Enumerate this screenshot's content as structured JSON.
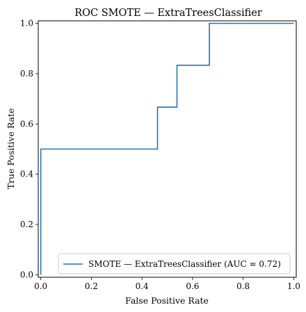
{
  "chart_data": {
    "type": "line",
    "title": "ROC SMOTE — ExtraTreesClassifier",
    "xlabel": "False Positive Rate",
    "ylabel": "True Positive Rate",
    "xlim": [
      -0.01,
      1.01
    ],
    "ylim": [
      -0.01,
      1.01
    ],
    "x_ticks": [
      0.0,
      0.2,
      0.4,
      0.6,
      0.8,
      1.0
    ],
    "x_tick_labels": [
      "0.0",
      "0.2",
      "0.4",
      "0.6",
      "0.8",
      "1.0"
    ],
    "y_ticks": [
      0.0,
      0.2,
      0.4,
      0.6,
      0.8,
      1.0
    ],
    "y_tick_labels": [
      "0.0",
      "0.2",
      "0.4",
      "0.6",
      "0.8",
      "1.0"
    ],
    "grid": false,
    "legend_position": "lower-right",
    "series": [
      {
        "name": "SMOTE — ExtraTreesClassifier (AUC = 0.72)",
        "color": "#1f77b4",
        "x": [
          0.0,
          0.0,
          0.0,
          0.4615,
          0.4615,
          0.5385,
          0.5385,
          0.6667,
          0.6667,
          1.0
        ],
        "y": [
          0.0,
          0.1667,
          0.5,
          0.5,
          0.6667,
          0.6667,
          0.8333,
          0.8333,
          1.0,
          1.0
        ]
      }
    ]
  }
}
